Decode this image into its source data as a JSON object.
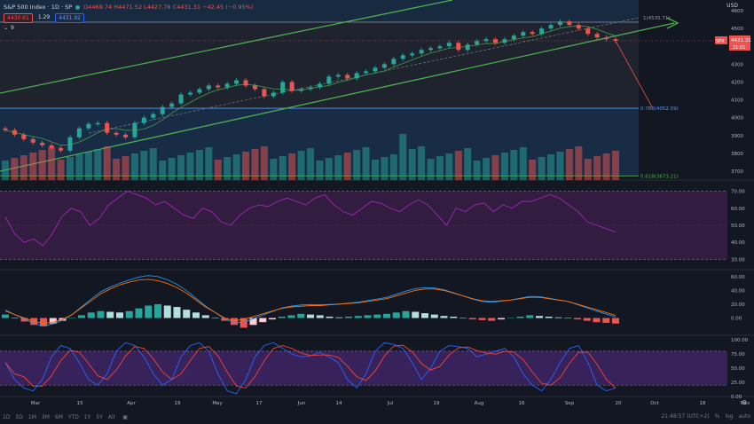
{
  "header": {
    "symbol": "S&P 500 Index · 1D · SP",
    "ohlc": "O4469.74 H4471.52 L4427.76 C4431.31 −42.45 (−0.95%)",
    "pill_price": "4430.61",
    "pill_spread": "1.29",
    "pill_price2": "4431.92",
    "indicator_count": "9",
    "currency": "USD"
  },
  "price_labels": {
    "symbol_tag": "SPX",
    "last_price": "4431.31",
    "countdown": "21:01"
  },
  "fib_labels": {
    "top": "1(4535.71)",
    "level_786": "0.786(4052.59)",
    "level_618": "0.618(3673.21)"
  },
  "bottom_bar": {
    "timeframes": [
      "1D",
      "5D",
      "1M",
      "3M",
      "6M",
      "YTD",
      "1Y",
      "5Y",
      "All"
    ],
    "clock": "21:48:57 (UTC+2)",
    "percent": "%",
    "log": "log",
    "auto": "auto"
  },
  "colors": {
    "bull": "#26a69a",
    "bear": "#ef5350",
    "fib_zone_upper": "#1d3a55",
    "fib_zone_lower": "#1b3450",
    "channel": "#4caf50",
    "rsi_line": "#9c27b0",
    "rsi_band": "#3b1f4a",
    "macd": "#2196f3",
    "signal": "#ff6d00",
    "stoch_k": "#2962ff",
    "stoch_d": "#f44336",
    "stoch_band": "#3f2466"
  },
  "chart_data": [
    {
      "type": "line",
      "pane": "price",
      "title": "S&P 500 Index",
      "ylim": [
        3650,
        4660
      ],
      "y_ticks": [
        3700,
        3800,
        3900,
        4000,
        4100,
        4200,
        4300,
        4400,
        4500,
        4600
      ],
      "x_ticks": [
        "Mar",
        "15",
        "Apr",
        "19",
        "May",
        "17",
        "Jun",
        "14",
        "Jul",
        "19",
        "Aug",
        "16",
        "Sep",
        "20",
        "Oct",
        "18",
        "Nov"
      ],
      "series": [
        {
          "values": [
            3930,
            3905,
            3880,
            3860,
            3845,
            3830,
            3815,
            3890,
            3940,
            3965,
            3970,
            3915,
            3905,
            3890,
            3970,
            4000,
            4020,
            4060,
            4080,
            4130,
            4140,
            4160,
            4180,
            4170,
            4190,
            4210,
            4180,
            4160,
            4120,
            4140,
            4200,
            4150,
            4160,
            4170,
            4190,
            4230,
            4240,
            4220,
            4250,
            4260,
            4280,
            4300,
            4330,
            4350,
            4360,
            4380,
            4390,
            4400,
            4420,
            4380,
            4410,
            4430,
            4440,
            4420,
            4440,
            4460,
            4480,
            4470,
            4500,
            4520,
            4540,
            4520,
            4500,
            4470,
            4450,
            4440,
            4431
          ]
        }
      ]
    },
    {
      "type": "line",
      "pane": "RSI",
      "ylim": [
        25,
        75
      ],
      "y_ticks": [
        30,
        40,
        50,
        60,
        70
      ],
      "series": [
        {
          "values": [
            55,
            45,
            40,
            42,
            38,
            45,
            55,
            60,
            58,
            50,
            54,
            62,
            66,
            70,
            68,
            66,
            62,
            64,
            60,
            56,
            54,
            60,
            58,
            52,
            50,
            56,
            60,
            62,
            61,
            64,
            66,
            64,
            62,
            66,
            68,
            62,
            58,
            56,
            60,
            64,
            63,
            60,
            58,
            62,
            65,
            62,
            56,
            50,
            60,
            58,
            62,
            63,
            58,
            62,
            60,
            64,
            64,
            66,
            68,
            66,
            62,
            58,
            52,
            50,
            48,
            46
          ]
        }
      ]
    },
    {
      "type": "bar",
      "pane": "MACD",
      "ylim": [
        -25,
        70
      ],
      "y_ticks": [
        0,
        20,
        40,
        60
      ],
      "series": [
        {
          "values": [
            5,
            0,
            -5,
            -10,
            -12,
            -8,
            -4,
            0,
            4,
            8,
            10,
            9,
            8,
            10,
            14,
            18,
            20,
            18,
            16,
            12,
            8,
            4,
            0,
            -4,
            -10,
            -14,
            -10,
            -6,
            -2,
            2,
            4,
            6,
            5,
            4,
            2,
            1,
            2,
            3,
            4,
            5,
            6,
            8,
            10,
            9,
            7,
            5,
            3,
            2,
            0,
            -2,
            -3,
            -4,
            -2,
            0,
            2,
            4,
            3,
            2,
            1,
            0,
            -2,
            -4,
            -6,
            -7,
            -8
          ]
        }
      ]
    },
    {
      "type": "line",
      "pane": "Stochastic",
      "ylim": [
        0,
        105
      ],
      "y_ticks": [
        0,
        25,
        50,
        75,
        100
      ],
      "series": [
        {
          "values": [
            60,
            30,
            15,
            10,
            30,
            70,
            90,
            85,
            60,
            30,
            20,
            40,
            80,
            95,
            90,
            70,
            40,
            20,
            30,
            70,
            90,
            95,
            80,
            40,
            10,
            5,
            30,
            70,
            90,
            95,
            85,
            75,
            70,
            72,
            78,
            70,
            60,
            30,
            15,
            40,
            80,
            95,
            92,
            85,
            60,
            30,
            50,
            80,
            90,
            88,
            85,
            70,
            75,
            80,
            85,
            70,
            40,
            20,
            10,
            30,
            60,
            85,
            90,
            60,
            20,
            10,
            15
          ]
        }
      ]
    }
  ]
}
